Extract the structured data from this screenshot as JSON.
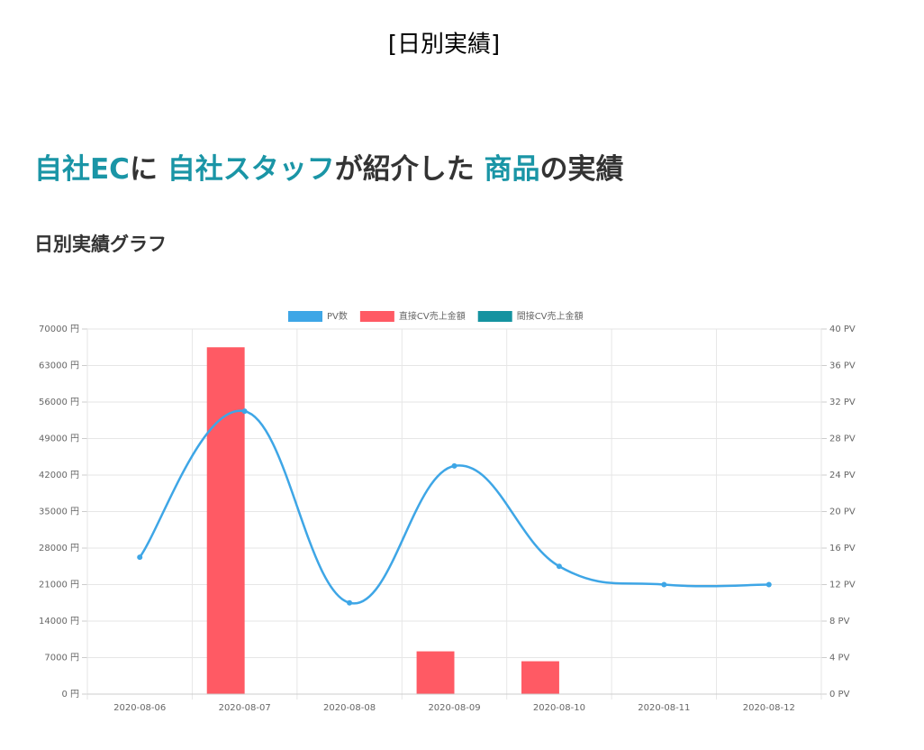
{
  "page_title": "[日別実績]",
  "heading": [
    {
      "text": "自社EC",
      "color": "#1a95a6"
    },
    {
      "text": "に ",
      "color": "#333333"
    },
    {
      "text": "自社スタッフ",
      "color": "#1a95a6"
    },
    {
      "text": "が紹介した ",
      "color": "#333333"
    },
    {
      "text": "商品",
      "color": "#1a95a6"
    },
    {
      "text": "の実績",
      "color": "#333333"
    }
  ],
  "subheading": "日別実績グラフ",
  "chart_data": {
    "type": "bar-line",
    "categories": [
      "2020-08-06",
      "2020-08-07",
      "2020-08-08",
      "2020-08-09",
      "2020-08-10",
      "2020-08-11",
      "2020-08-12"
    ],
    "series": [
      {
        "name": "PV数",
        "type": "line",
        "axis": "y2",
        "color": "#3ea6e6",
        "values": [
          15,
          31,
          10,
          25,
          14,
          12,
          12
        ]
      },
      {
        "name": "直接CV売上金額",
        "type": "bar",
        "color": "#ff5a64",
        "values": [
          0,
          66500,
          0,
          8200,
          6300,
          0,
          0
        ]
      },
      {
        "name": "間接CV売上金額",
        "type": "bar",
        "color": "#1593a0",
        "values": [
          0,
          0,
          0,
          0,
          0,
          0,
          0
        ]
      }
    ],
    "ylim": [
      0,
      70000
    ],
    "yticks": [
      {
        "value": 0,
        "label": "0 円"
      },
      {
        "value": 7000,
        "label": "7000 円"
      },
      {
        "value": 14000,
        "label": "14000 円"
      },
      {
        "value": 21000,
        "label": "21000 円"
      },
      {
        "value": 28000,
        "label": "28000 円"
      },
      {
        "value": 35000,
        "label": "35000 円"
      },
      {
        "value": 42000,
        "label": "42000 円"
      },
      {
        "value": 49000,
        "label": "49000 円"
      },
      {
        "value": 56000,
        "label": "56000 円"
      },
      {
        "value": 63000,
        "label": "63000 円"
      },
      {
        "value": 70000,
        "label": "70000 円"
      }
    ],
    "y2lim": [
      0,
      40
    ],
    "y2ticks": [
      {
        "value": 0,
        "label": "0 PV"
      },
      {
        "value": 4,
        "label": "4 PV"
      },
      {
        "value": 8,
        "label": "8 PV"
      },
      {
        "value": 12,
        "label": "12 PV"
      },
      {
        "value": 16,
        "label": "16 PV"
      },
      {
        "value": 20,
        "label": "20 PV"
      },
      {
        "value": 24,
        "label": "24 PV"
      },
      {
        "value": 28,
        "label": "28 PV"
      },
      {
        "value": 32,
        "label": "32 PV"
      },
      {
        "value": 36,
        "label": "36 PV"
      },
      {
        "value": 40,
        "label": "40 PV"
      }
    ],
    "grid": true,
    "legend": "top"
  }
}
